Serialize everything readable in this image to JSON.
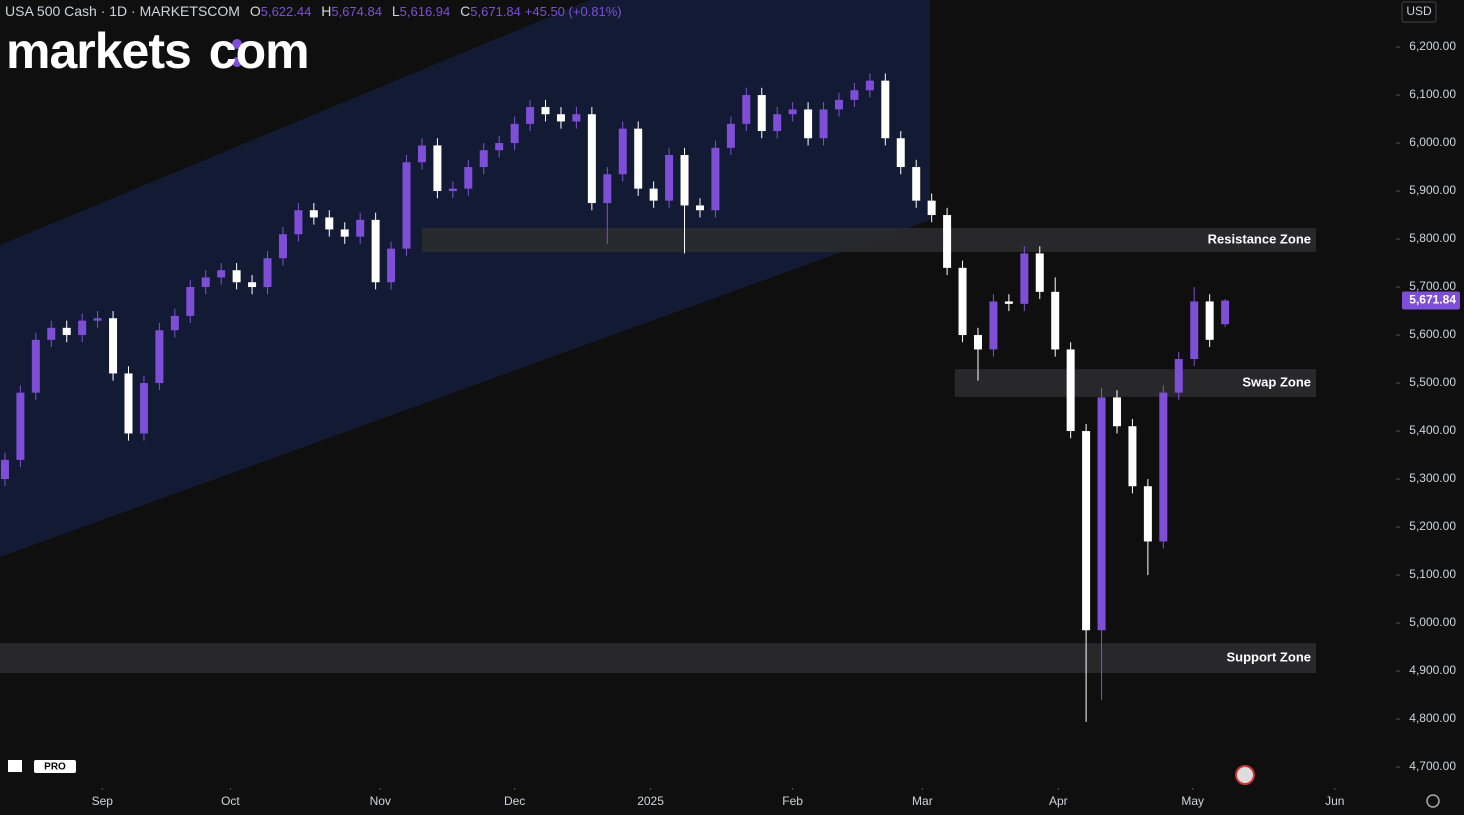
{
  "header": {
    "symbol": "USA 500 Cash · 1D · MARKETSCOM",
    "o_key": "O",
    "o": "5,622.44",
    "h_key": "H",
    "h": "5,674.84",
    "l_key": "L",
    "l": "5,616.94",
    "c_key": "C",
    "c": "5,671.84",
    "change": "+45.50 (+0.81%)"
  },
  "logo": {
    "left": "markets",
    "right": "com"
  },
  "tv_badge": "PRO",
  "currency": "USD",
  "chart_data": {
    "type": "candlestick",
    "open": [
      5300,
      5340,
      5480,
      5590,
      5615,
      5600,
      5630,
      5635,
      5520,
      5395,
      5500,
      5610,
      5640,
      5700,
      5720,
      5735,
      5710,
      5700,
      5760,
      5810,
      5860,
      5845,
      5820,
      5805,
      5840,
      5710,
      5780,
      5960,
      5995,
      5900,
      5905,
      5950,
      5985,
      6000,
      6040,
      6075,
      6060,
      6045,
      6060,
      5875,
      5935,
      6030,
      5905,
      5880,
      5975,
      5870,
      5860,
      5990,
      6040,
      6100,
      6025,
      6060,
      6070,
      6010,
      6070,
      6090,
      6110,
      6130,
      6010,
      5950,
      5880,
      5850,
      5740,
      5600,
      5570,
      5670,
      5665,
      5770,
      5690,
      5570,
      5400,
      4985,
      5470,
      5410,
      5285,
      5170,
      5480,
      5550,
      5670,
      5622.44
    ],
    "high": [
      5355,
      5495,
      5605,
      5630,
      5630,
      5645,
      5650,
      5650,
      5535,
      5515,
      5625,
      5655,
      5715,
      5735,
      5750,
      5750,
      5725,
      5775,
      5825,
      5875,
      5875,
      5860,
      5835,
      5855,
      5855,
      5795,
      5975,
      6010,
      6010,
      5920,
      5965,
      6000,
      6015,
      6055,
      6090,
      6090,
      6075,
      6075,
      6075,
      5950,
      6045,
      6045,
      5920,
      5990,
      5990,
      5885,
      6005,
      6055,
      6115,
      6115,
      6075,
      6085,
      6085,
      6085,
      6105,
      6125,
      6145,
      6145,
      6025,
      5965,
      5895,
      5865,
      5755,
      5615,
      5685,
      5685,
      5785,
      5785,
      5720,
      5585,
      5415,
      5490,
      5485,
      5425,
      5300,
      5495,
      5565,
      5700,
      5685,
      5674.84
    ],
    "low": [
      5285,
      5325,
      5465,
      5575,
      5585,
      5585,
      5615,
      5505,
      5380,
      5380,
      5485,
      5595,
      5625,
      5685,
      5705,
      5695,
      5685,
      5685,
      5745,
      5795,
      5830,
      5805,
      5790,
      5790,
      5695,
      5695,
      5765,
      5945,
      5885,
      5885,
      5890,
      5935,
      5970,
      5985,
      6025,
      6045,
      6030,
      6030,
      5860,
      5790,
      5920,
      5890,
      5865,
      5865,
      5770,
      5845,
      5845,
      5975,
      6025,
      6010,
      6010,
      6045,
      5995,
      5995,
      6055,
      6075,
      6095,
      5995,
      5935,
      5865,
      5835,
      5725,
      5585,
      5505,
      5555,
      5650,
      5650,
      5675,
      5555,
      5385,
      4794,
      4840,
      5395,
      5270,
      5100,
      5155,
      5465,
      5535,
      5575,
      5616.94
    ],
    "close": [
      5340,
      5480,
      5590,
      5615,
      5600,
      5630,
      5635,
      5520,
      5395,
      5500,
      5610,
      5640,
      5700,
      5720,
      5735,
      5710,
      5700,
      5760,
      5810,
      5860,
      5845,
      5820,
      5805,
      5840,
      5710,
      5780,
      5960,
      5995,
      5900,
      5905,
      5950,
      5985,
      6000,
      6040,
      6075,
      6060,
      6045,
      6060,
      5875,
      5935,
      6030,
      5905,
      5880,
      5975,
      5870,
      5860,
      5990,
      6040,
      6100,
      6025,
      6060,
      6070,
      6010,
      6070,
      6090,
      6110,
      6130,
      6010,
      5950,
      5880,
      5850,
      5740,
      5600,
      5570,
      5670,
      5665,
      5770,
      5690,
      5570,
      5400,
      4985,
      5470,
      5410,
      5285,
      5170,
      5480,
      5550,
      5670,
      5590,
      5671.84
    ],
    "up_color": "#7e4fd6",
    "down_color": "#ffffff",
    "last_price_label": "5,671.84",
    "xlim": [
      -0.32,
      90
    ],
    "xticks": [
      {
        "value": 6.3,
        "label": "Sep"
      },
      {
        "value": 14.6,
        "label": "Oct"
      },
      {
        "value": 24.3,
        "label": "Nov"
      },
      {
        "value": 33,
        "label": "Dec"
      },
      {
        "value": 41.8,
        "label": "2025"
      },
      {
        "value": 51,
        "label": "Feb"
      },
      {
        "value": 59.4,
        "label": "Mar"
      },
      {
        "value": 68.2,
        "label": "Apr"
      },
      {
        "value": 76.9,
        "label": "May"
      },
      {
        "value": 86.1,
        "label": "Jun"
      }
    ],
    "ylim": [
      4673,
      6298
    ],
    "yticks": [
      {
        "value": 6200,
        "label": "6,200.00"
      },
      {
        "value": 6100,
        "label": "6,100.00"
      },
      {
        "value": 6000,
        "label": "6,000.00"
      },
      {
        "value": 5900,
        "label": "5,900.00"
      },
      {
        "value": 5800,
        "label": "5,800.00"
      },
      {
        "value": 5700,
        "label": "5,700.00"
      },
      {
        "value": 5600,
        "label": "5,600.00"
      },
      {
        "value": 5500,
        "label": "5,500.00"
      },
      {
        "value": 5400,
        "label": "5,400.00"
      },
      {
        "value": 5300,
        "label": "5,300.00"
      },
      {
        "value": 5200,
        "label": "5,200.00"
      },
      {
        "value": 5100,
        "label": "5,100.00"
      },
      {
        "value": 5000,
        "label": "5,000.00"
      },
      {
        "value": 4900,
        "label": "4,900.00"
      },
      {
        "value": 4800,
        "label": "4,800.00"
      },
      {
        "value": 4700,
        "label": "4,700.00"
      }
    ],
    "zones": [
      {
        "name": "Resistance Zone",
        "range": [
          5773,
          5823
        ],
        "start": 27
      },
      {
        "name": "Swap Zone",
        "range": [
          5471,
          5529
        ],
        "start": 61.5
      },
      {
        "name": "Support Zone",
        "range": [
          4896,
          4958
        ],
        "start": -0.32
      }
    ]
  }
}
